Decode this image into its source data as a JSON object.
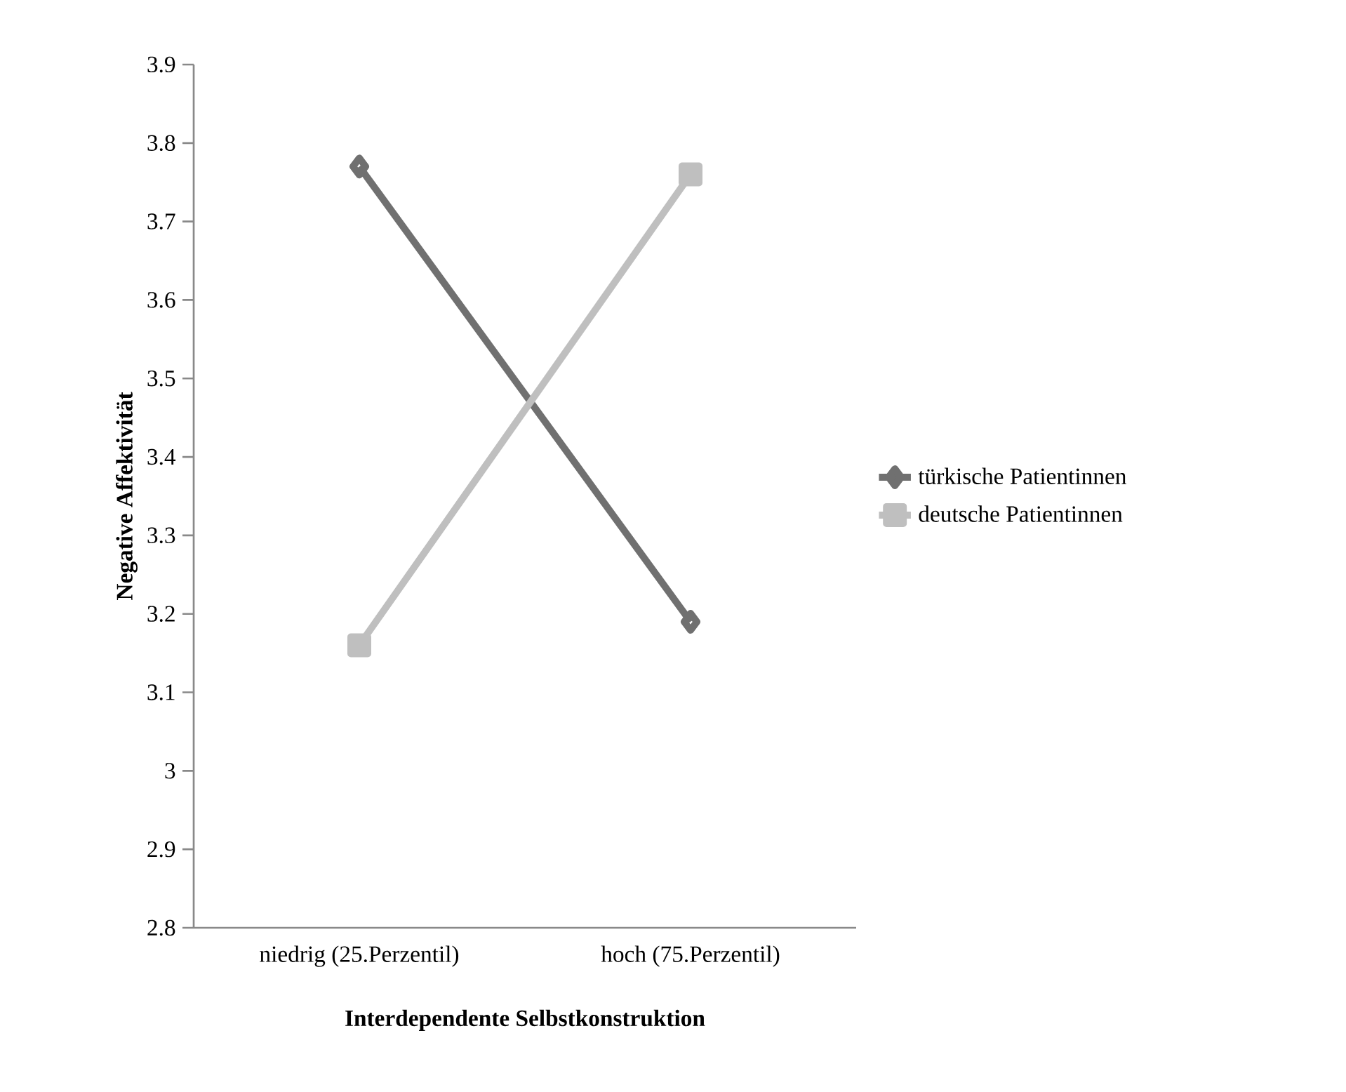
{
  "chart_data": {
    "type": "line",
    "xlabel": "Interdependente Selbstkonstruktion",
    "ylabel": "Negative Affektivität",
    "categories": [
      "niedrig (25.Perzentil)",
      "hoch (75.Perzentil)"
    ],
    "series": [
      {
        "name": "türkische Patientinnen",
        "color": "#707070",
        "marker": "diamond",
        "values": [
          3.77,
          3.19
        ]
      },
      {
        "name": "deutsche Patientinnen",
        "color": "#bfbfbf",
        "marker": "square",
        "values": [
          3.16,
          3.76
        ]
      }
    ],
    "ylim": [
      2.8,
      3.9
    ],
    "yticks": [
      2.8,
      2.9,
      3,
      3.1,
      3.2,
      3.3,
      3.4,
      3.5,
      3.6,
      3.7,
      3.8,
      3.9
    ],
    "grid": false,
    "legend": "right",
    "line_style": "solid"
  }
}
